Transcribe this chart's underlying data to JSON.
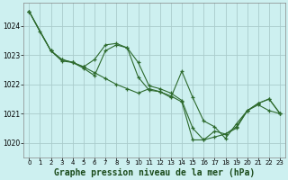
{
  "background_color": "#cdf0f0",
  "grid_color": "#aacccc",
  "line_color": "#2d6a2d",
  "xlabel": "Graphe pression niveau de la mer (hPa)",
  "xlabel_fontsize": 7,
  "xlim": [
    -0.5,
    23.5
  ],
  "ylim": [
    1019.5,
    1024.8
  ],
  "yticks": [
    1020,
    1021,
    1022,
    1023,
    1024
  ],
  "xticks": [
    0,
    1,
    2,
    3,
    4,
    5,
    6,
    7,
    8,
    9,
    10,
    11,
    12,
    13,
    14,
    15,
    16,
    17,
    18,
    19,
    20,
    21,
    22,
    23
  ],
  "series": [
    {
      "x": [
        0,
        1,
        2,
        3,
        4,
        5,
        6,
        7,
        8,
        9,
        10,
        11,
        12,
        13,
        14,
        15,
        16,
        17,
        18,
        19,
        20,
        21,
        22,
        23
      ],
      "y": [
        1024.5,
        1023.8,
        1023.15,
        1022.85,
        1022.75,
        1022.6,
        1022.4,
        1022.2,
        1022.0,
        1021.85,
        1021.7,
        1021.85,
        1021.75,
        1021.6,
        1021.4,
        1020.1,
        1020.1,
        1020.2,
        1020.3,
        1020.55,
        1021.1,
        1021.3,
        1021.1,
        1021.0
      ]
    },
    {
      "x": [
        0,
        2,
        3,
        4,
        5,
        6,
        7,
        8,
        9,
        10,
        11,
        12,
        13,
        14,
        15,
        16,
        17,
        18,
        19,
        20,
        21,
        22,
        23
      ],
      "y": [
        1024.5,
        1023.15,
        1022.8,
        1022.75,
        1022.6,
        1022.85,
        1023.35,
        1023.4,
        1023.25,
        1022.25,
        1021.8,
        1021.75,
        1021.55,
        1022.45,
        1021.55,
        1020.75,
        1020.55,
        1020.15,
        1020.65,
        1021.1,
        1021.35,
        1021.5,
        1021.0
      ]
    },
    {
      "x": [
        0,
        2,
        3,
        4,
        5,
        6,
        7,
        8,
        9,
        10,
        11,
        12,
        13,
        14,
        15,
        16,
        17,
        18,
        19,
        20,
        21,
        22,
        23
      ],
      "y": [
        1024.5,
        1023.15,
        1022.85,
        1022.75,
        1022.55,
        1022.3,
        1023.15,
        1023.35,
        1023.25,
        1022.75,
        1021.95,
        1021.85,
        1021.7,
        1021.45,
        1020.5,
        1020.1,
        1020.4,
        1020.3,
        1020.5,
        1021.1,
        1021.35,
        1021.5,
        1021.0
      ]
    }
  ]
}
